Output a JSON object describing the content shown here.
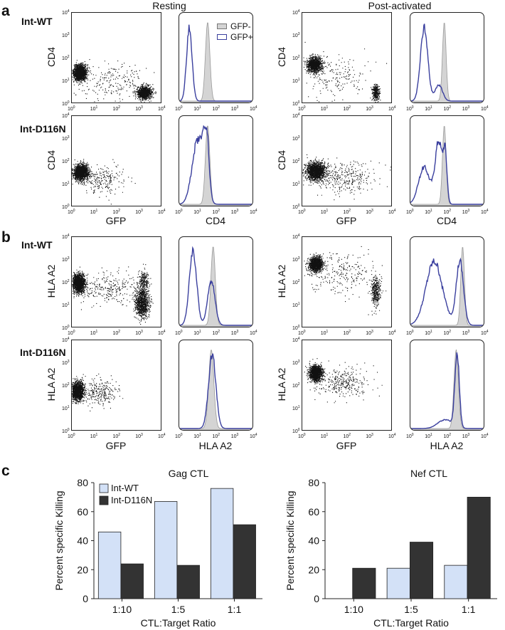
{
  "panels": {
    "a": "a",
    "b": "b",
    "c": "c",
    "resting": "Resting",
    "post_activated": "Post-activated",
    "int_wt": "Int-WT",
    "int_d116n": "Int-D116N"
  },
  "axis_labels": {
    "cd4": "CD4",
    "gfp": "GFP",
    "hla_a2": "HLA  A2",
    "hla_a2_x": "HLA A2",
    "hla_a2_x2": "HLA  A2"
  },
  "log_ticks": [
    "0",
    "1",
    "2",
    "3",
    "4"
  ],
  "hist_legend": {
    "gfp_neg": "GFP-",
    "gfp_pos": "GFP+"
  },
  "colors": {
    "gfp_pos_line": "#3a3f9e",
    "gfp_neg_fill": "#d4d4d4",
    "bar_wt": "#d3e1f7",
    "bar_d116n": "#333333"
  },
  "chart_data": [
    {
      "type": "bar",
      "title": "Gag CTL",
      "categories": [
        "1:10",
        "1:5",
        "1:1"
      ],
      "series": [
        {
          "name": "Int-WT",
          "values": [
            46,
            67,
            76
          ]
        },
        {
          "name": "Int-D116N",
          "values": [
            24,
            23,
            51
          ]
        }
      ],
      "xlabel": "CTL:Target Ratio",
      "ylabel": "Percent specific Killing",
      "ylim": [
        0,
        80
      ],
      "yticks": [
        "0",
        "20",
        "40",
        "60",
        "80"
      ],
      "legend": "top-left"
    },
    {
      "type": "bar",
      "title": "Nef CTL",
      "categories": [
        "1:10",
        "1:5",
        "1:1"
      ],
      "series": [
        {
          "name": "Int-WT",
          "values": [
            0,
            21,
            23
          ]
        },
        {
          "name": "Int-D116N",
          "values": [
            21,
            39,
            70
          ]
        }
      ],
      "xlabel": "CTL:Target Ratio",
      "ylabel": "Percent specific Killing",
      "ylim": [
        0,
        80
      ],
      "yticks": [
        "0",
        "20",
        "40",
        "60",
        "80"
      ]
    }
  ]
}
